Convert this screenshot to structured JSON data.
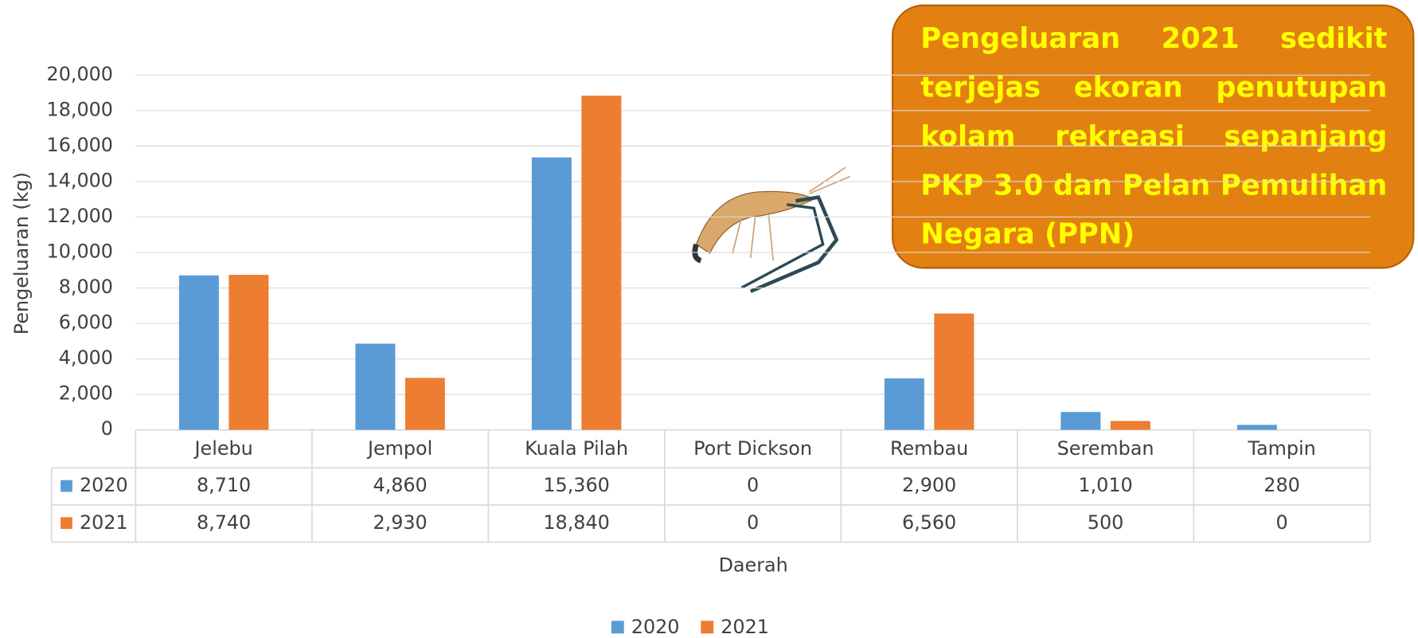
{
  "chart_data": {
    "type": "bar",
    "annotation": "Pengeluaran 2021 sedikit terjejas ekoran penutupan kolam rekreasi sepanjang PKP 3.0 dan Pelan Pemulihan Negara (PPN)",
    "y_label": "Pengeluaran (kg)",
    "x_label": "Daerah",
    "categories": [
      "Jelebu",
      "Jempol",
      "Kuala Pilah",
      "Port Dickson",
      "Rembau",
      "Seremban",
      "Tampin"
    ],
    "series": [
      {
        "name": "2020",
        "color": "#5b9bd5",
        "values": [
          8710,
          4860,
          15360,
          0,
          2900,
          1010,
          280
        ],
        "value_labels": [
          "8,710",
          "4,860",
          "15,360",
          "0",
          "2,900",
          "1,010",
          "280"
        ]
      },
      {
        "name": "2021",
        "color": "#ed7d31",
        "values": [
          8740,
          2930,
          18840,
          0,
          6560,
          500,
          0
        ],
        "value_labels": [
          "8,740",
          "2,930",
          "18,840",
          "0",
          "6,560",
          "500",
          "0"
        ]
      }
    ],
    "ylim": [
      0,
      20000
    ],
    "yticks": [
      0,
      {
        "value": 2000,
        "label": "2,000"
      },
      {
        "value": 4000,
        "label": "4,000"
      },
      {
        "value": 6000,
        "label": "6,000"
      },
      {
        "value": 8000,
        "label": "8,000"
      },
      {
        "value": 10000,
        "label": "10,000"
      },
      {
        "value": 12000,
        "label": "12,000"
      },
      {
        "value": 14000,
        "label": "14,000"
      },
      {
        "value": 16000,
        "label": "16,000"
      },
      {
        "value": 18000,
        "label": "18,000"
      },
      {
        "value": 20000,
        "label": "20,000"
      }
    ],
    "grid": true,
    "legend": "bottom"
  }
}
